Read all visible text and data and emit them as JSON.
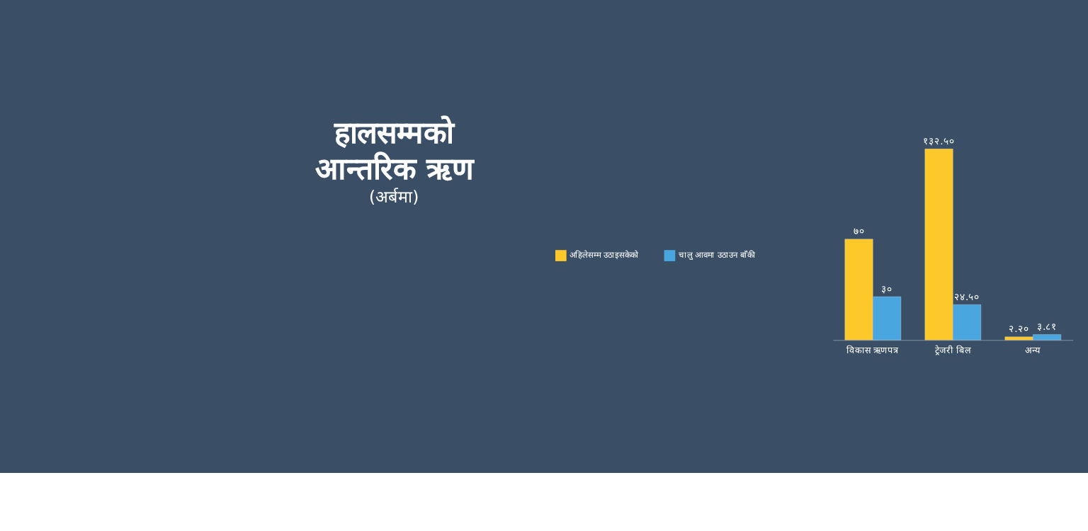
{
  "chart_data": {
    "type": "bar",
    "title": "हालसम्मको आन्तरिक ऋण",
    "subtitle": "(अर्बमा)",
    "categories": [
      "विकास ऋणपत्र",
      "ट्रेजरी बिल",
      "अन्य"
    ],
    "series": [
      {
        "name": "अहिलेसम्म उठाइसकेको",
        "color": "#fdc82a",
        "values": [
          70,
          132.5,
          2.2
        ],
        "value_labels": [
          "७०",
          "१३२.५०",
          "२.२०"
        ]
      },
      {
        "name": "चालु आवमा उठाउन बाँकी",
        "color": "#4aa6df",
        "values": [
          30,
          24.5,
          3.81
        ],
        "value_labels": [
          "३०",
          "२४.५०",
          "३.८१"
        ]
      }
    ],
    "legend": "left",
    "grid": false
  }
}
